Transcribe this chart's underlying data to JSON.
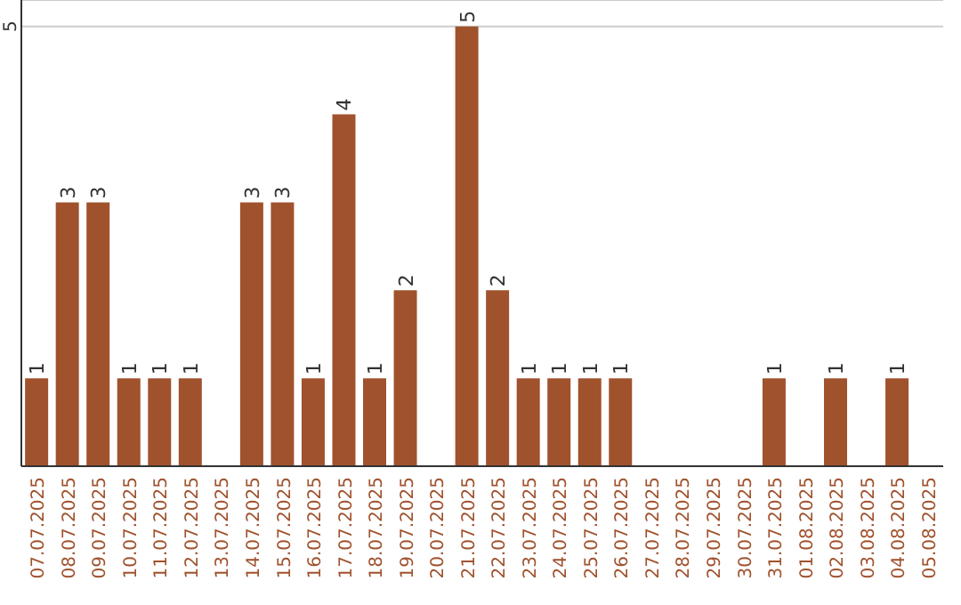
{
  "chart_data": {
    "type": "bar",
    "categories": [
      "07.07.2025",
      "08.07.2025",
      "09.07.2025",
      "10.07.2025",
      "11.07.2025",
      "12.07.2025",
      "13.07.2025",
      "14.07.2025",
      "15.07.2025",
      "16.07.2025",
      "17.07.2025",
      "18.07.2025",
      "19.07.2025",
      "20.07.2025",
      "21.07.2025",
      "22.07.2025",
      "23.07.2025",
      "24.07.2025",
      "25.07.2025",
      "26.07.2025",
      "27.07.2025",
      "28.07.2025",
      "29.07.2025",
      "30.07.2025",
      "31.07.2025",
      "01.08.2025",
      "02.08.2025",
      "03.08.2025",
      "04.08.2025",
      "05.08.2025"
    ],
    "values": [
      1,
      3,
      3,
      1,
      1,
      1,
      0,
      3,
      3,
      1,
      4,
      1,
      2,
      0,
      5,
      2,
      1,
      1,
      1,
      1,
      0,
      0,
      0,
      0,
      1,
      0,
      1,
      0,
      1,
      0
    ],
    "value_labels": [
      "1",
      "3",
      "3",
      "1",
      "1",
      "1",
      null,
      "3",
      "3",
      "1",
      "4",
      "1",
      "2",
      null,
      "5",
      "2",
      "1",
      "1",
      "1",
      "1",
      null,
      null,
      null,
      null,
      "1",
      null,
      "1",
      null,
      "1",
      null
    ],
    "color": "#a0522d",
    "ylim": [
      0,
      5.3
    ],
    "yticks": [
      5
    ],
    "grid": "y"
  }
}
